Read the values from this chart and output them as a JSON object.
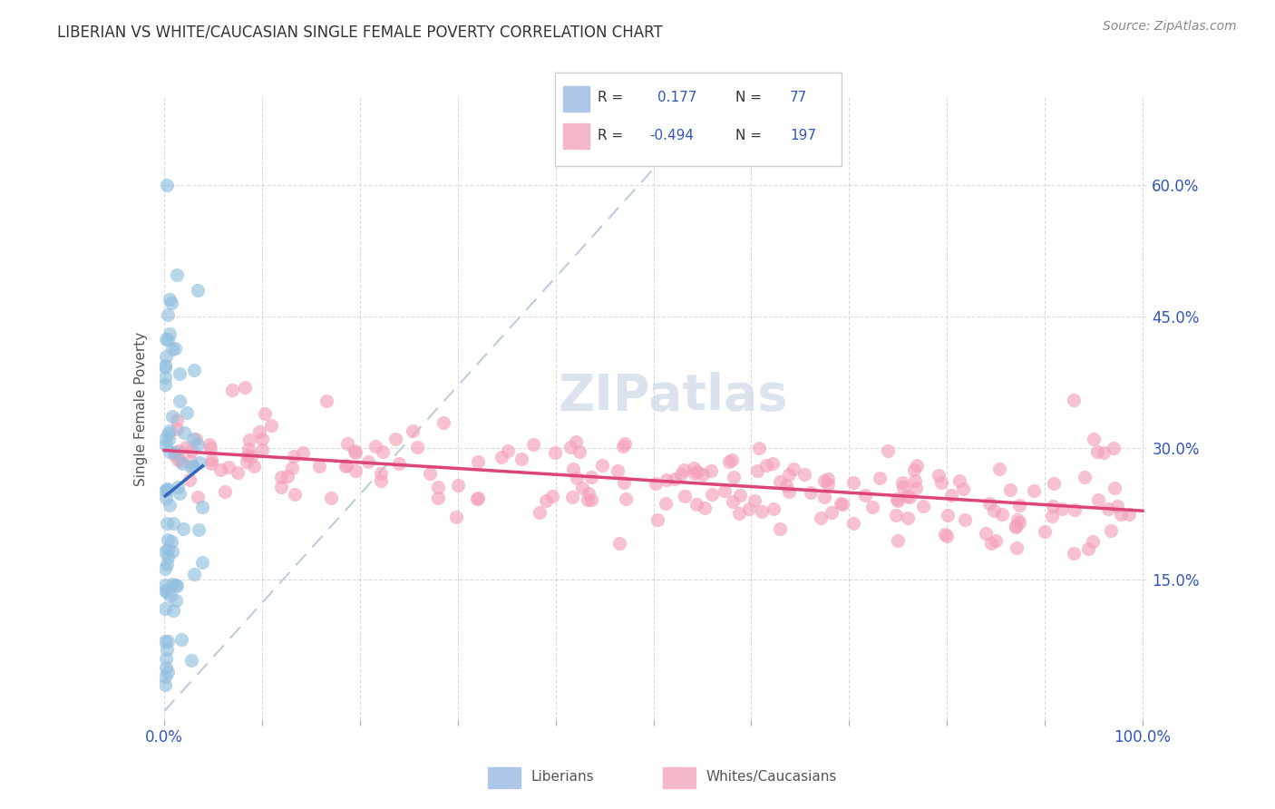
{
  "title": "LIBERIAN VS WHITE/CAUCASIAN SINGLE FEMALE POVERTY CORRELATION CHART",
  "source": "Source: ZipAtlas.com",
  "ylabel": "Single Female Poverty",
  "ytick_vals": [
    0.15,
    0.3,
    0.45,
    0.6
  ],
  "ytick_labels": [
    "15.0%",
    "30.0%",
    "45.0%",
    "60.0%"
  ],
  "xtick_labels_show": [
    "0.0%",
    "100.0%"
  ],
  "liberian_color": "#92c0e0",
  "white_color": "#f4a0b8",
  "trend_liberian_color": "#3366bb",
  "trend_white_color": "#dd4477",
  "dashed_line_color": "#bbccdd",
  "watermark_color": "#ccd8e8",
  "background_color": "#ffffff",
  "grid_color": "#cccccc",
  "R_liberian": 0.177,
  "N_liberian": 77,
  "R_white": -0.494,
  "N_white": 197,
  "legend_box_color": "#aec6e8",
  "legend_box_color2": "#f4b8c8",
  "title_color": "#333333",
  "source_color": "#888888",
  "tick_label_color": "#3355bb",
  "ylabel_color": "#555555"
}
